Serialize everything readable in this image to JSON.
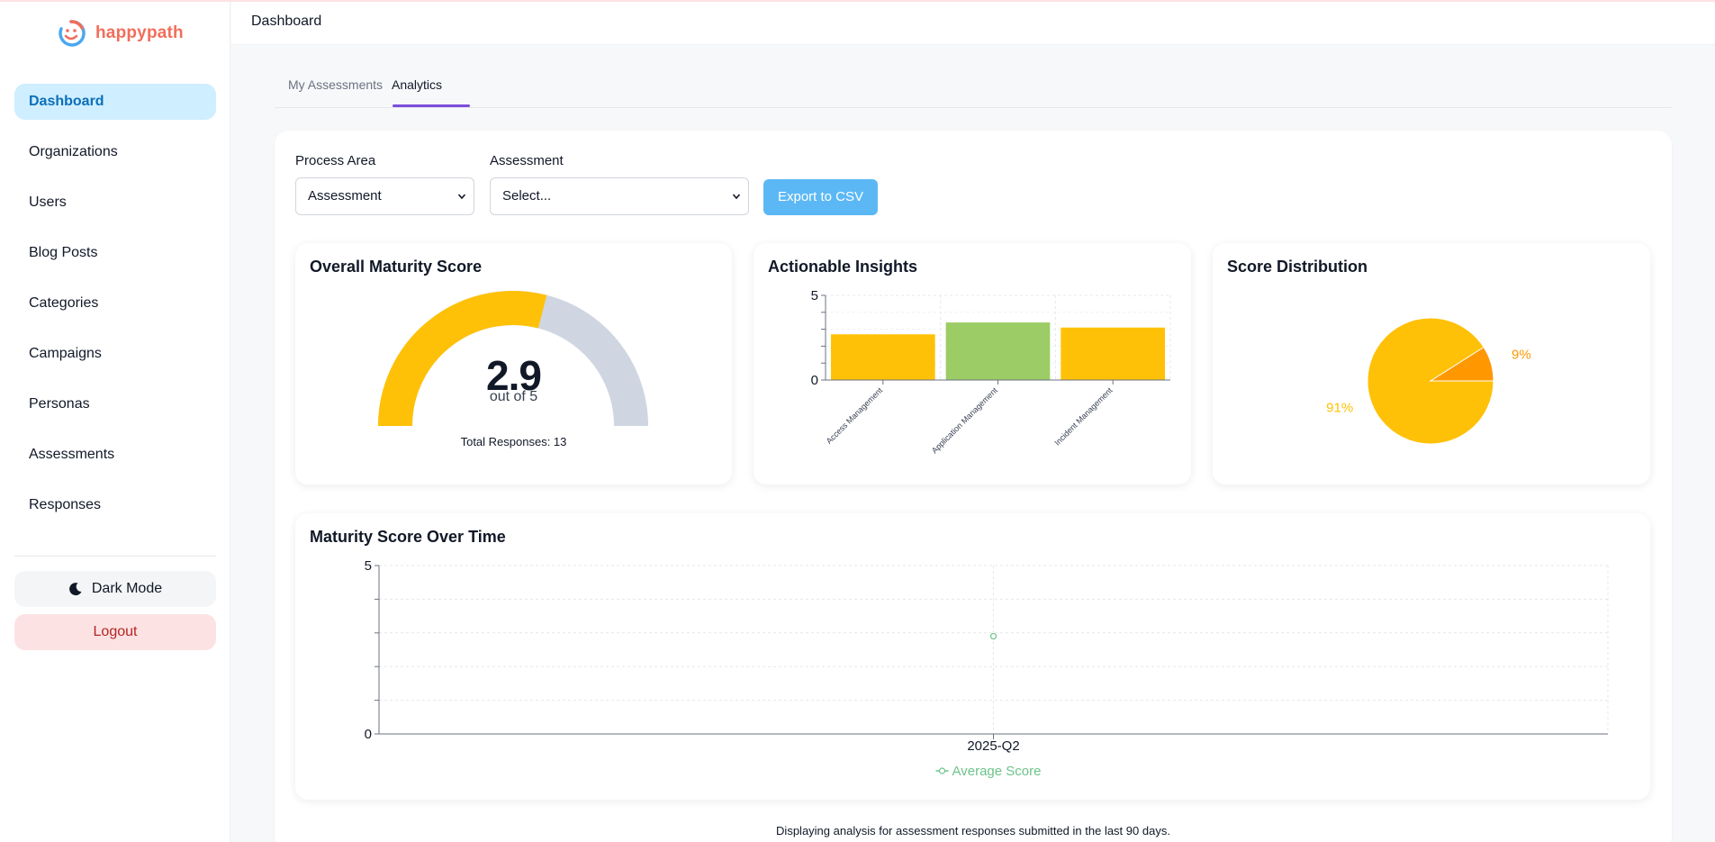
{
  "app": {
    "brand": "happypath",
    "header_title": "Dashboard"
  },
  "sidebar": {
    "items": [
      {
        "label": "Dashboard",
        "active": true
      },
      {
        "label": "Organizations"
      },
      {
        "label": "Users"
      },
      {
        "label": "Blog Posts"
      },
      {
        "label": "Categories"
      },
      {
        "label": "Campaigns"
      },
      {
        "label": "Personas"
      },
      {
        "label": "Assessments"
      },
      {
        "label": "Responses"
      }
    ],
    "dark_mode_label": "Dark Mode",
    "logout_label": "Logout"
  },
  "tabs": [
    {
      "label": "My Assessments"
    },
    {
      "label": "Analytics",
      "active": true
    }
  ],
  "filters": {
    "process_area_label": "Process Area",
    "process_area_value": "Assessment",
    "assessment_label": "Assessment",
    "assessment_value": "Select...",
    "export_label": "Export to CSV"
  },
  "maturity": {
    "title": "Overall Maturity Score",
    "score": "2.9",
    "out_of": "out of 5",
    "total_responses": "Total Responses: 13",
    "fraction": 0.58,
    "colors": {
      "filled": "#ffc107",
      "empty": "#cfd6e1"
    }
  },
  "insights": {
    "title": "Actionable Insights"
  },
  "distribution": {
    "title": "Score Distribution"
  },
  "over_time": {
    "title": "Maturity Score Over Time"
  },
  "chart_data": [
    {
      "type": "bar",
      "title": "Actionable Insights",
      "categories": [
        "Access Management",
        "Application Management",
        "Incident Management"
      ],
      "values": [
        2.7,
        3.4,
        3.1
      ],
      "colors": [
        "#ffc107",
        "#9ccc65",
        "#ffc107"
      ],
      "ylim": [
        0,
        5
      ],
      "yticks": [
        "0",
        "5"
      ],
      "grid": true
    },
    {
      "type": "pie",
      "title": "Score Distribution",
      "slices": [
        {
          "label": "91%",
          "value": 91,
          "color": "#ffc107"
        },
        {
          "label": "9%",
          "value": 9,
          "color": "#ff9800"
        }
      ]
    },
    {
      "type": "line",
      "title": "Maturity Score Over Time",
      "x": [
        "2025-Q2"
      ],
      "series": [
        {
          "name": "Average Score",
          "values": [
            2.9
          ],
          "color": "#6cc38a"
        }
      ],
      "ylim": [
        0,
        5
      ],
      "yticks": [
        "0",
        "5"
      ],
      "grid": true,
      "legend": "bottom"
    }
  ],
  "footer_note": "Displaying analysis for assessment responses submitted in the last 90 days."
}
